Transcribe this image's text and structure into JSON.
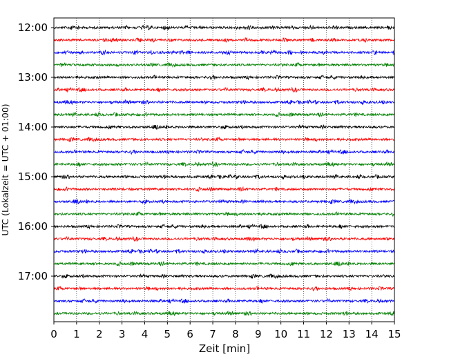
{
  "chart_data": {
    "type": "line",
    "title": "",
    "xlabel": "Zeit  [min]",
    "ylabel": "UTC (Lokalzeit = UTC + 01:00)",
    "xlim": [
      0,
      15
    ],
    "x_ticks": [
      0,
      1,
      2,
      3,
      4,
      5,
      6,
      7,
      8,
      9,
      10,
      11,
      12,
      13,
      14,
      15
    ],
    "y_tick_labels": [
      "12:00",
      "13:00",
      "14:00",
      "15:00",
      "16:00",
      "17:00"
    ],
    "trace_interval_min": 15,
    "grid": "vertical dotted lines at each minute",
    "traces": [
      {
        "start": "12:00",
        "color": "#000000"
      },
      {
        "start": "12:15",
        "color": "#ff0000"
      },
      {
        "start": "12:30",
        "color": "#0000ff"
      },
      {
        "start": "12:45",
        "color": "#008000"
      },
      {
        "start": "13:00",
        "color": "#000000"
      },
      {
        "start": "13:15",
        "color": "#ff0000"
      },
      {
        "start": "13:30",
        "color": "#0000ff"
      },
      {
        "start": "13:45",
        "color": "#008000"
      },
      {
        "start": "14:00",
        "color": "#000000"
      },
      {
        "start": "14:15",
        "color": "#ff0000"
      },
      {
        "start": "14:30",
        "color": "#0000ff"
      },
      {
        "start": "14:45",
        "color": "#008000"
      },
      {
        "start": "15:00",
        "color": "#000000"
      },
      {
        "start": "15:15",
        "color": "#ff0000"
      },
      {
        "start": "15:30",
        "color": "#0000ff"
      },
      {
        "start": "15:45",
        "color": "#008000"
      },
      {
        "start": "16:00",
        "color": "#000000"
      },
      {
        "start": "16:15",
        "color": "#ff0000"
      },
      {
        "start": "16:30",
        "color": "#0000ff"
      },
      {
        "start": "16:45",
        "color": "#008000"
      },
      {
        "start": "17:00",
        "color": "#000000"
      },
      {
        "start": "17:15",
        "color": "#ff0000"
      },
      {
        "start": "17:30",
        "color": "#0000ff"
      },
      {
        "start": "17:45",
        "color": "#008000"
      }
    ]
  }
}
